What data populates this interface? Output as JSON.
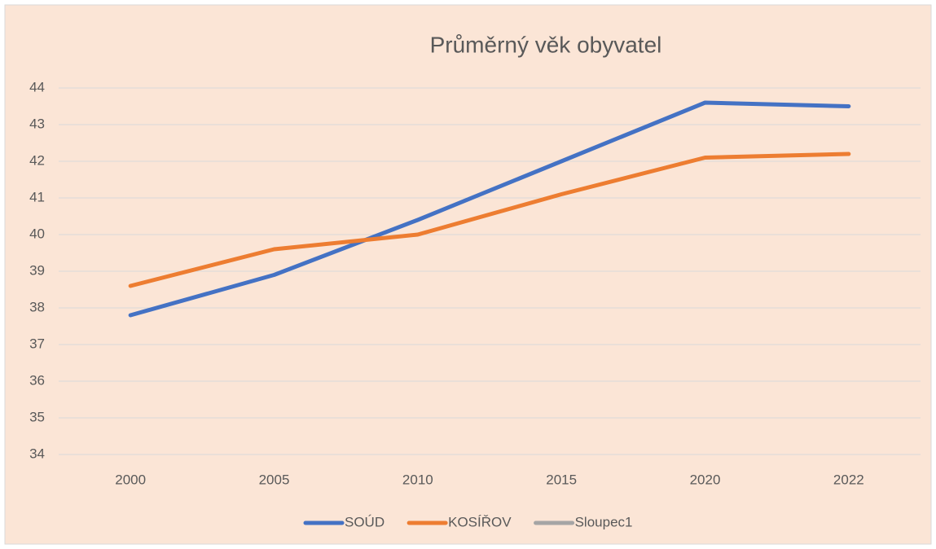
{
  "chart_data": {
    "type": "line",
    "title": "Průměrný věk obyvatel",
    "categories": [
      "2000",
      "2005",
      "2010",
      "2015",
      "2020",
      "2022"
    ],
    "series": [
      {
        "name": "SOÚD",
        "color": "#4472c4",
        "values": [
          37.8,
          38.9,
          40.4,
          42.0,
          43.6,
          43.5
        ]
      },
      {
        "name": "KOSÍŘOV",
        "color": "#ed7d31",
        "values": [
          38.6,
          39.6,
          40.0,
          41.1,
          42.1,
          42.2
        ]
      },
      {
        "name": "Sloupec1",
        "color": "#a5a5a5",
        "values": [
          null,
          null,
          null,
          null,
          null,
          null
        ]
      }
    ],
    "ylim": [
      34,
      44
    ],
    "yticks": [
      34,
      35,
      36,
      37,
      38,
      39,
      40,
      41,
      42,
      43,
      44
    ],
    "grid": true,
    "legend": "bottom"
  }
}
